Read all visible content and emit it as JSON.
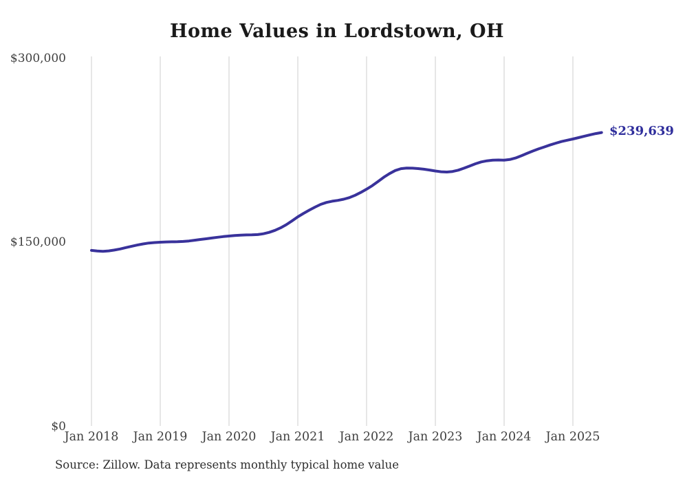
{
  "title": "Home Values in Lordstown, OH",
  "source_note": "Source: Zillow. Data represents monthly typical home value",
  "end_label": "$239,639",
  "colors": {
    "line": "#39329b",
    "end_label": "#2f2e9c",
    "grid": "#cccccc",
    "title_text": "#1a1a1a",
    "axis_text": "#3f3f3f",
    "source_text": "#2e2e2e",
    "background": "#ffffff"
  },
  "chart_data": {
    "type": "line",
    "title": "Home Values in Lordstown, OH",
    "series_name": "Typical home value (monthly)",
    "xlabel": "",
    "ylabel": "",
    "ylim": [
      0,
      300000
    ],
    "grid": "vertical-only",
    "legend": "none",
    "end_annotation": "$239,639",
    "yticks": [
      {
        "value": 0,
        "label": "$0"
      },
      {
        "value": 150000,
        "label": "$150,000"
      },
      {
        "value": 300000,
        "label": "$300,000"
      }
    ],
    "xticks": [
      {
        "label": "Jan 2018"
      },
      {
        "label": "Jan 2019"
      },
      {
        "label": "Jan 2020"
      },
      {
        "label": "Jan 2021"
      },
      {
        "label": "Jan 2022"
      },
      {
        "label": "Jan 2023"
      },
      {
        "label": "Jan 2024"
      },
      {
        "label": "Jan 2025"
      }
    ],
    "x": [
      "2018-01",
      "2018-02",
      "2018-03",
      "2018-04",
      "2018-05",
      "2018-06",
      "2018-07",
      "2018-08",
      "2018-09",
      "2018-10",
      "2018-11",
      "2018-12",
      "2019-01",
      "2019-02",
      "2019-03",
      "2019-04",
      "2019-05",
      "2019-06",
      "2019-07",
      "2019-08",
      "2019-09",
      "2019-10",
      "2019-11",
      "2019-12",
      "2020-01",
      "2020-02",
      "2020-03",
      "2020-04",
      "2020-05",
      "2020-06",
      "2020-07",
      "2020-08",
      "2020-09",
      "2020-10",
      "2020-11",
      "2020-12",
      "2021-01",
      "2021-02",
      "2021-03",
      "2021-04",
      "2021-05",
      "2021-06",
      "2021-07",
      "2021-08",
      "2021-09",
      "2021-10",
      "2021-11",
      "2021-12",
      "2022-01",
      "2022-02",
      "2022-03",
      "2022-04",
      "2022-05",
      "2022-06",
      "2022-07",
      "2022-08",
      "2022-09",
      "2022-10",
      "2022-11",
      "2022-12",
      "2023-01",
      "2023-02",
      "2023-03",
      "2023-04",
      "2023-05",
      "2023-06",
      "2023-07",
      "2023-08",
      "2023-09",
      "2023-10",
      "2023-11",
      "2023-12",
      "2024-01",
      "2024-02",
      "2024-03",
      "2024-04",
      "2024-05",
      "2024-06",
      "2024-07",
      "2024-08",
      "2024-09",
      "2024-10",
      "2024-11",
      "2024-12",
      "2025-01",
      "2025-02",
      "2025-03",
      "2025-04",
      "2025-05",
      "2025-06"
    ],
    "values": [
      143600,
      143100,
      142900,
      143200,
      143900,
      144800,
      145900,
      147000,
      148000,
      148900,
      149600,
      150000,
      150300,
      150500,
      150600,
      150700,
      150900,
      151300,
      151900,
      152500,
      153100,
      153700,
      154300,
      154900,
      155300,
      155700,
      156000,
      156200,
      156300,
      156500,
      157200,
      158300,
      159900,
      162000,
      164600,
      167700,
      171000,
      173800,
      176400,
      178900,
      181100,
      182700,
      183700,
      184400,
      185300,
      186600,
      188500,
      190900,
      193500,
      196400,
      199800,
      203200,
      206200,
      208700,
      210200,
      210700,
      210600,
      210300,
      209800,
      209100,
      208300,
      207700,
      207500,
      207900,
      209000,
      210600,
      212400,
      214200,
      215700,
      216600,
      217100,
      217300,
      217200,
      217700,
      218900,
      220700,
      222700,
      224600,
      226300,
      227900,
      229500,
      231000,
      232300,
      233400,
      234400,
      235500,
      236700,
      237800,
      238800,
      239639
    ]
  }
}
